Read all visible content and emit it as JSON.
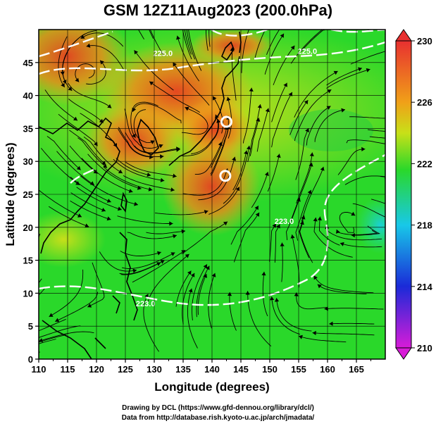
{
  "title": "GSM 12Z11Aug2023 (200.0hPa)",
  "credits": {
    "line1": "Drawing by DCL (https://www.gfd-dennou.org/library/dcl/)",
    "line2": "Data from http://database.rish.kyoto-u.ac.jp/arch/jmadata/"
  },
  "map": {
    "xlabel": "Longitude (degrees)",
    "ylabel": "Latitude  (degrees)",
    "xlim": [
      110,
      170
    ],
    "ylim": [
      0,
      50
    ],
    "xticks": [
      110,
      115,
      120,
      125,
      130,
      135,
      140,
      145,
      150,
      155,
      160,
      165
    ],
    "yticks": [
      0,
      5,
      10,
      15,
      20,
      25,
      30,
      35,
      40,
      45
    ],
    "grid": true,
    "contour_labels": [
      {
        "text": "225.0",
        "lon": 131.5,
        "lat": 46.0
      },
      {
        "text": "225.0",
        "lon": 156.5,
        "lat": 46.3
      },
      {
        "text": "223.0",
        "lon": 152.5,
        "lat": 20.5
      },
      {
        "text": "223.0",
        "lon": 128.5,
        "lat": 8.0
      }
    ],
    "circle_markers": [
      {
        "lon": 142.5,
        "lat": 36.0
      },
      {
        "lon": 142.3,
        "lat": 27.8
      }
    ],
    "colors": {
      "low": "#d81cd8",
      "blue": "#1a2ad8",
      "cyan": "#18c8e8",
      "green": "#2ad82a",
      "yellow": "#c8e018",
      "orange": "#f0a018",
      "high": "#e83030"
    }
  },
  "colorbar": {
    "ticks": [
      230,
      226,
      222,
      218,
      214,
      210
    ],
    "min": 210,
    "max": 230
  }
}
